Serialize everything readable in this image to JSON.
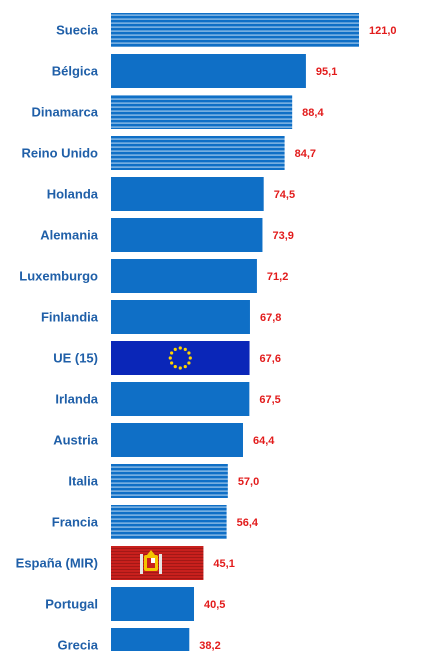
{
  "chart_data": {
    "type": "bar",
    "orientation": "horizontal",
    "categories": [
      "Suecia",
      "Bélgica",
      "Dinamarca",
      "Reino Unido",
      "Holanda",
      "Alemania",
      "Luxemburgo",
      "Finlandia",
      "UE (15)",
      "Irlanda",
      "Austria",
      "Italia",
      "Francia",
      "España (MIR)",
      "Portugal",
      "Grecia"
    ],
    "values": [
      121.0,
      95.1,
      88.4,
      84.7,
      74.5,
      73.9,
      71.2,
      67.8,
      67.6,
      67.5,
      64.4,
      57.0,
      56.4,
      45.1,
      40.5,
      38.2
    ],
    "value_labels": [
      "121,0",
      "95,1",
      "88,4",
      "84,7",
      "74,5",
      "73,9",
      "71,2",
      "67,8",
      "67,6",
      "67,5",
      "64,4",
      "57,0",
      "56,4",
      "45,1",
      "40,5",
      "38,2"
    ],
    "bar_styles": [
      "striped",
      "solid",
      "striped",
      "striped",
      "solid",
      "solid",
      "solid",
      "solid",
      "eu-flag",
      "solid",
      "solid",
      "striped",
      "striped",
      "spain-flag",
      "solid",
      "solid"
    ],
    "xlim": [
      0,
      121.0
    ],
    "colors": {
      "bar": "#0f6fc6",
      "stripe": "#bcd8f2",
      "eu_flag": "#0a26b8",
      "eu_star": "#ffd400",
      "spain_red": "#c8201d",
      "spain_yellow": "#f4c400",
      "label": "#1f5fa8",
      "value": "#e21b1b",
      "grid": "#d0d0d0"
    },
    "grid": false,
    "legend": "none"
  }
}
